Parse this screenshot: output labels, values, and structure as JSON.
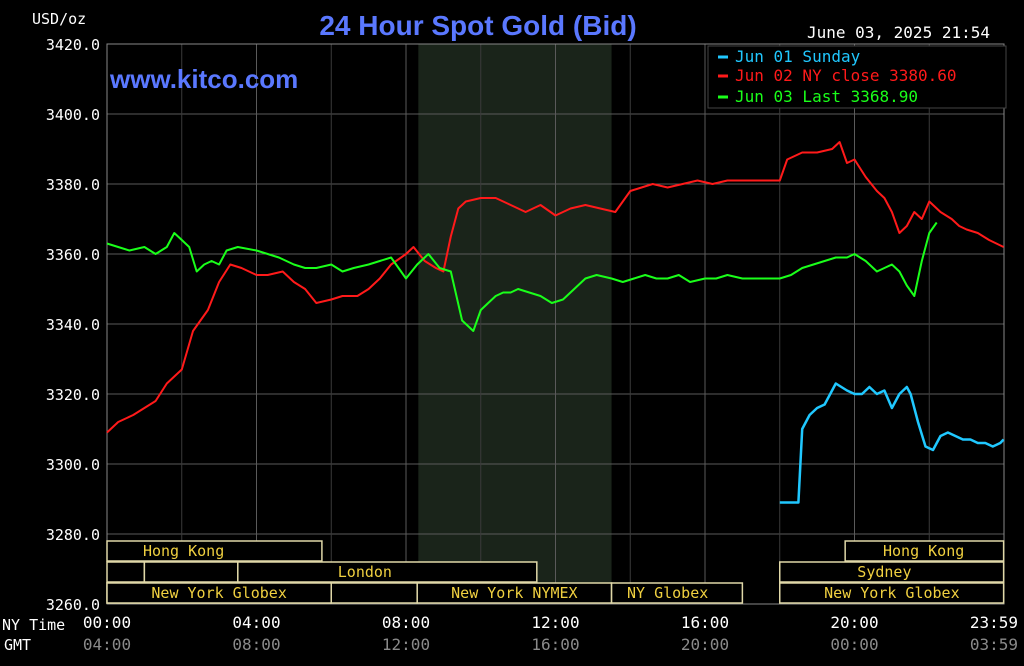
{
  "chart_data": {
    "type": "line",
    "title": "24 Hour Spot Gold (Bid)",
    "watermark": "www.kitco.com",
    "timestamp": "June 03, 2025 21:54",
    "y_unit": "USD/oz",
    "ylim": [
      3260,
      3420
    ],
    "y_ticks": [
      "3420.0",
      "3400.0",
      "3380.0",
      "3360.0",
      "3340.0",
      "3320.0",
      "3300.0",
      "3280.0",
      "3260.0"
    ],
    "x_axis_ny_label": "NY Time",
    "x_axis_gmt_label": "GMT",
    "x_ticks_ny": [
      "00:00",
      "04:00",
      "08:00",
      "12:00",
      "16:00",
      "20:00",
      "23:59"
    ],
    "x_ticks_gmt": [
      "04:00",
      "08:00",
      "12:00",
      "16:00",
      "20:00",
      "00:00",
      "03:59"
    ],
    "xlim_hours": [
      0,
      24
    ],
    "shaded_session_hours": [
      8.33,
      13.5
    ],
    "grid": true,
    "legend_position": "top-right",
    "legend": [
      {
        "label": "Jun 01 Sunday",
        "color": "#20c8ff"
      },
      {
        "label": "Jun 02 NY close 3380.60",
        "color": "#ff1a1a"
      },
      {
        "label": "Jun 03 Last 3368.90",
        "color": "#1aff1a"
      }
    ],
    "series": [
      {
        "name": "Jun 01 Sunday",
        "color": "#20c8ff",
        "x": [
          18.0,
          18.5,
          18.6,
          18.8,
          19.0,
          19.2,
          19.5,
          19.8,
          20.0,
          20.2,
          20.4,
          20.6,
          20.8,
          21.0,
          21.2,
          21.4,
          21.5,
          21.7,
          21.9,
          22.1,
          22.3,
          22.5,
          22.7,
          22.9,
          23.1,
          23.3,
          23.5,
          23.7,
          23.9,
          23.99
        ],
        "y": [
          3289,
          3289,
          3310,
          3314,
          3316,
          3317,
          3323,
          3321,
          3320,
          3320,
          3322,
          3320,
          3321,
          3316,
          3320,
          3322,
          3320,
          3312,
          3305,
          3304,
          3308,
          3309,
          3308,
          3307,
          3307,
          3306,
          3306,
          3305,
          3306,
          3307
        ]
      },
      {
        "name": "Jun 02 NY close 3380.60",
        "color": "#ff1a1a",
        "x": [
          0.0,
          0.3,
          0.7,
          1.0,
          1.3,
          1.6,
          2.0,
          2.3,
          2.7,
          3.0,
          3.3,
          3.6,
          4.0,
          4.3,
          4.7,
          5.0,
          5.3,
          5.6,
          6.0,
          6.3,
          6.7,
          7.0,
          7.3,
          7.6,
          8.0,
          8.2,
          8.5,
          8.8,
          9.0,
          9.2,
          9.4,
          9.6,
          10.0,
          10.4,
          10.8,
          11.2,
          11.6,
          12.0,
          12.4,
          12.8,
          13.2,
          13.6,
          14.0,
          14.3,
          14.6,
          15.0,
          15.4,
          15.8,
          16.2,
          16.6,
          17.0,
          17.5,
          18.0,
          18.2,
          18.6,
          19.0,
          19.4,
          19.6,
          19.8,
          20.0,
          20.3,
          20.6,
          20.8,
          21.0,
          21.2,
          21.4,
          21.6,
          21.8,
          22.0,
          22.3,
          22.6,
          22.8,
          23.0,
          23.3,
          23.6,
          23.99
        ],
        "y": [
          3309,
          3312,
          3314,
          3316,
          3318,
          3323,
          3327,
          3338,
          3344,
          3352,
          3357,
          3356,
          3354,
          3354,
          3355,
          3352,
          3350,
          3346,
          3347,
          3348,
          3348,
          3350,
          3353,
          3357,
          3360,
          3362,
          3358,
          3356,
          3355,
          3365,
          3373,
          3375,
          3376,
          3376,
          3374,
          3372,
          3374,
          3371,
          3373,
          3374,
          3373,
          3372,
          3378,
          3379,
          3380,
          3379,
          3380,
          3381,
          3380,
          3381,
          3381,
          3381,
          3381,
          3387,
          3389,
          3389,
          3390,
          3392,
          3386,
          3387,
          3382,
          3378,
          3376,
          3372,
          3366,
          3368,
          3372,
          3370,
          3375,
          3372,
          3370,
          3368,
          3367,
          3366,
          3364,
          3362
        ]
      },
      {
        "name": "Jun 03 Last 3368.90",
        "color": "#1aff1a",
        "x": [
          0.0,
          0.3,
          0.6,
          1.0,
          1.3,
          1.6,
          1.8,
          2.0,
          2.2,
          2.4,
          2.6,
          2.8,
          3.0,
          3.2,
          3.5,
          4.0,
          4.3,
          4.6,
          5.0,
          5.3,
          5.6,
          6.0,
          6.3,
          6.6,
          7.0,
          7.3,
          7.6,
          8.0,
          8.3,
          8.6,
          8.9,
          9.2,
          9.5,
          9.8,
          10.0,
          10.2,
          10.4,
          10.6,
          10.8,
          11.0,
          11.3,
          11.6,
          11.9,
          12.2,
          12.5,
          12.8,
          13.1,
          13.5,
          13.8,
          14.1,
          14.4,
          14.7,
          15.0,
          15.3,
          15.6,
          16.0,
          16.3,
          16.6,
          17.0,
          17.5,
          18.0,
          18.3,
          18.6,
          18.9,
          19.2,
          19.5,
          19.8,
          20.0,
          20.3,
          20.6,
          20.8,
          21.0,
          21.2,
          21.4,
          21.6,
          21.8,
          22.0,
          22.2
        ],
        "y": [
          3363,
          3362,
          3361,
          3362,
          3360,
          3362,
          3366,
          3364,
          3362,
          3355,
          3357,
          3358,
          3357,
          3361,
          3362,
          3361,
          3360,
          3359,
          3357,
          3356,
          3356,
          3357,
          3355,
          3356,
          3357,
          3358,
          3359,
          3353,
          3357,
          3360,
          3356,
          3355,
          3341,
          3338,
          3344,
          3346,
          3348,
          3349,
          3349,
          3350,
          3349,
          3348,
          3346,
          3347,
          3350,
          3353,
          3354,
          3353,
          3352,
          3353,
          3354,
          3353,
          3353,
          3354,
          3352,
          3353,
          3353,
          3354,
          3353,
          3353,
          3353,
          3354,
          3356,
          3357,
          3358,
          3359,
          3359,
          3360,
          3358,
          3355,
          3356,
          3357,
          3355,
          3351,
          3348,
          3358,
          3366,
          3369
        ]
      }
    ],
    "sessions": [
      {
        "label": "Hong Kong",
        "row": 0,
        "start": 0.0,
        "end": 5.75,
        "label_at": 2.05
      },
      {
        "label": "",
        "row": 1,
        "start": 0.0,
        "end": 1.0,
        "label_at": null
      },
      {
        "label": "",
        "row": 1,
        "start": 1.0,
        "end": 3.5,
        "label_at": null
      },
      {
        "label": "London",
        "row": 1,
        "start": 3.5,
        "end": 11.5,
        "label_at": 6.9
      },
      {
        "label": "",
        "row": 2,
        "start": 0.0,
        "end": 6.0,
        "label_at": null
      },
      {
        "label": "New York Globex",
        "row": 2,
        "start": 0.0,
        "end": 6.0,
        "label_at": 3.0
      },
      {
        "label": "",
        "row": 2,
        "start": 6.0,
        "end": 8.3,
        "label_at": null
      },
      {
        "label": "New York NYMEX",
        "row": 2,
        "start": 8.3,
        "end": 13.5,
        "label_at": 10.9
      },
      {
        "label": "NY Globex",
        "row": 2,
        "start": 13.5,
        "end": 17.0,
        "label_at": 15.0
      },
      {
        "label": "Hong Kong",
        "row": 0,
        "start": 19.75,
        "end": 23.99,
        "label_at": 21.85
      },
      {
        "label": "Sydney",
        "row": 1,
        "start": 18.0,
        "end": 23.99,
        "label_at": 20.8
      },
      {
        "label": "New York Globex",
        "row": 2,
        "start": 18.0,
        "end": 23.99,
        "label_at": 21.0
      }
    ]
  }
}
